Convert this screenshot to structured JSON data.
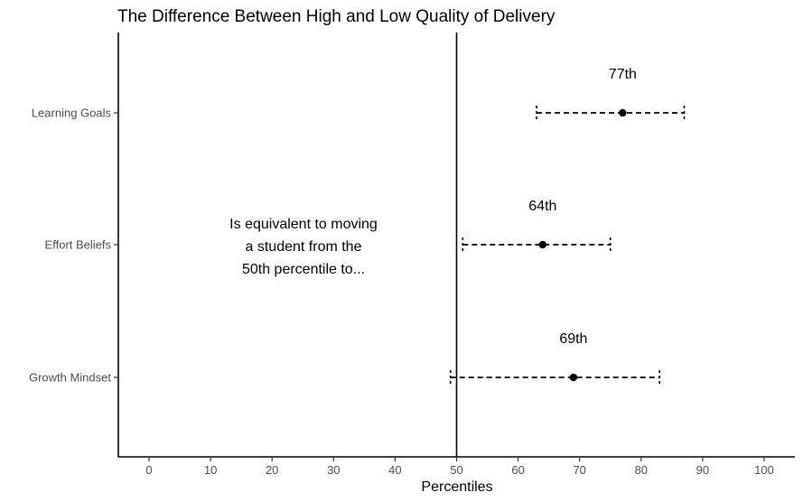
{
  "chart_data": {
    "type": "scatter",
    "title": "The Difference Between High and Low Quality of Delivery",
    "xlabel": "Percentiles",
    "ylabel": "",
    "xlim": [
      -5,
      105
    ],
    "xticks": [
      0,
      10,
      20,
      30,
      40,
      50,
      60,
      70,
      80,
      90,
      100
    ],
    "reference_line_x": 50,
    "categories": [
      "Learning Goals",
      "Effort Beliefs",
      "Growth Mindset"
    ],
    "points": [
      {
        "category": "Learning Goals",
        "value": 77,
        "low": 63,
        "high": 87,
        "label": "77th"
      },
      {
        "category": "Effort Beliefs",
        "value": 64,
        "low": 51,
        "high": 75,
        "label": "64th"
      },
      {
        "category": "Growth Mindset",
        "value": 69,
        "low": 49,
        "high": 83,
        "label": "69th"
      }
    ],
    "annotation": [
      "Is equivalent to moving",
      "a student from the",
      "50th percentile to..."
    ],
    "grid": false,
    "legend": "none"
  }
}
